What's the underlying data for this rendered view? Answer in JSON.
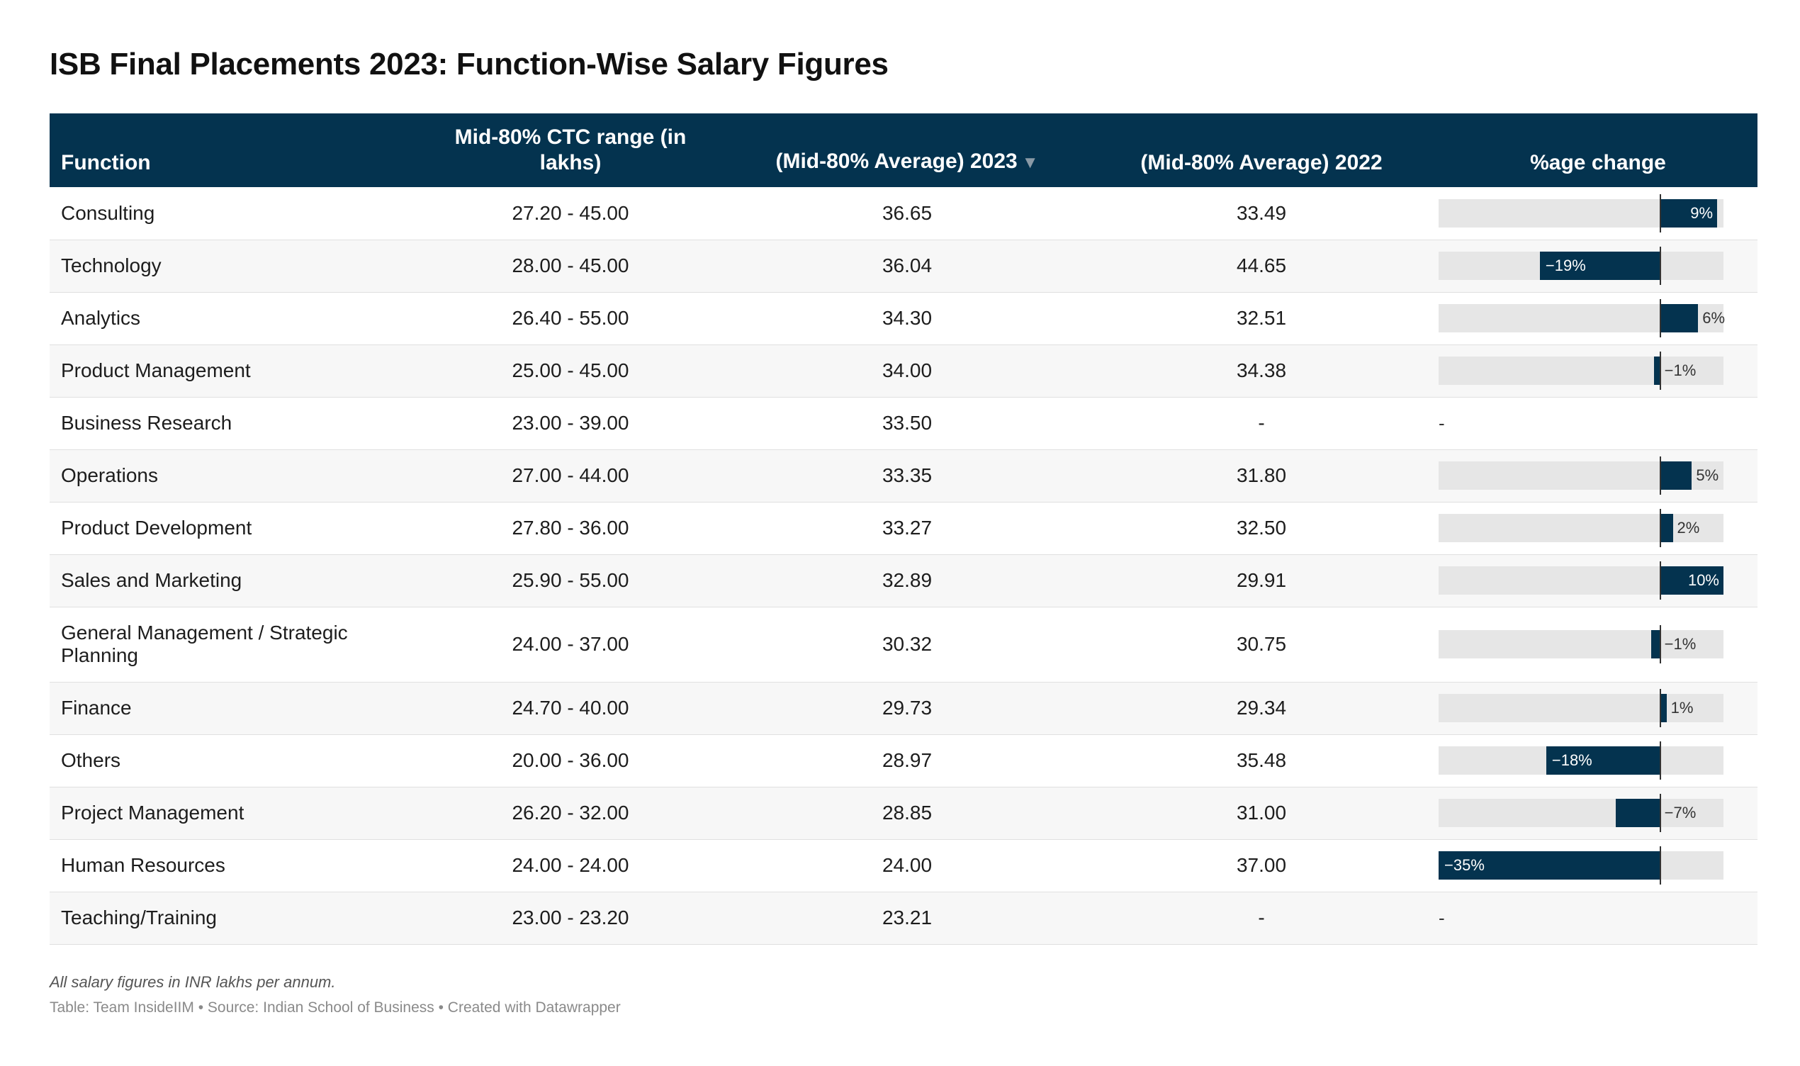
{
  "title": "ISB Final Placements 2023: Function-Wise Salary Figures",
  "columns": {
    "function": "Function",
    "range": "Mid-80% CTC range (in lakhs)",
    "avg2023": "(Mid-80% Average) 2023",
    "avg2022": "(Mid-80% Average) 2022",
    "change": "%age change",
    "sort_indicator": "▼"
  },
  "colors": {
    "header_bg": "#04334f",
    "bar": "#04334f",
    "track": "#e6e6e6"
  },
  "chart_data": {
    "type": "table",
    "bar_column": "%age change",
    "bar_domain": [
      -35,
      10
    ],
    "rows": [
      {
        "function": "Consulting",
        "range": "27.20 - 45.00",
        "avg2023": "36.65",
        "avg2022": "33.49",
        "change": 9,
        "change_label": "9%"
      },
      {
        "function": "Technology",
        "range": "28.00 - 45.00",
        "avg2023": "36.04",
        "avg2022": "44.65",
        "change": -19,
        "change_label": "−19%"
      },
      {
        "function": "Analytics",
        "range": "26.40 - 55.00",
        "avg2023": "34.30",
        "avg2022": "32.51",
        "change": 6,
        "change_label": "6%"
      },
      {
        "function": "Product Management",
        "range": "25.00 - 45.00",
        "avg2023": "34.00",
        "avg2022": "34.38",
        "change": -1,
        "change_label": "−1%"
      },
      {
        "function": "Business Research",
        "range": "23.00 - 39.00",
        "avg2023": "33.50",
        "avg2022": "-",
        "change": null,
        "change_label": "-"
      },
      {
        "function": "Operations",
        "range": "27.00 - 44.00",
        "avg2023": "33.35",
        "avg2022": "31.80",
        "change": 5,
        "change_label": "5%"
      },
      {
        "function": "Product Development",
        "range": "27.80 - 36.00",
        "avg2023": "33.27",
        "avg2022": "32.50",
        "change": 2,
        "change_label": "2%"
      },
      {
        "function": "Sales and Marketing",
        "range": "25.90 - 55.00",
        "avg2023": "32.89",
        "avg2022": "29.91",
        "change": 10,
        "change_label": "10%"
      },
      {
        "function": "General Management / Strategic Planning",
        "range": "24.00 - 37.00",
        "avg2023": "30.32",
        "avg2022": "30.75",
        "change": -1.4,
        "change_label": "−1%"
      },
      {
        "function": "Finance",
        "range": "24.70 - 40.00",
        "avg2023": "29.73",
        "avg2022": "29.34",
        "change": 1,
        "change_label": "1%"
      },
      {
        "function": "Others",
        "range": "20.00 - 36.00",
        "avg2023": "28.97",
        "avg2022": "35.48",
        "change": -18,
        "change_label": "−18%"
      },
      {
        "function": "Project Management",
        "range": "26.20 - 32.00",
        "avg2023": "28.85",
        "avg2022": "31.00",
        "change": -7,
        "change_label": "−7%"
      },
      {
        "function": "Human Resources",
        "range": "24.00 - 24.00",
        "avg2023": "24.00",
        "avg2022": "37.00",
        "change": -35,
        "change_label": "−35%"
      },
      {
        "function": "Teaching/Training",
        "range": "23.00 - 23.20",
        "avg2023": "23.21",
        "avg2022": "-",
        "change": null,
        "change_label": "-"
      }
    ]
  },
  "footer": {
    "note": "All salary figures in INR lakhs per annum.",
    "source": "Table: Team InsideIIM • Source: Indian School of Business • Created with Datawrapper"
  }
}
